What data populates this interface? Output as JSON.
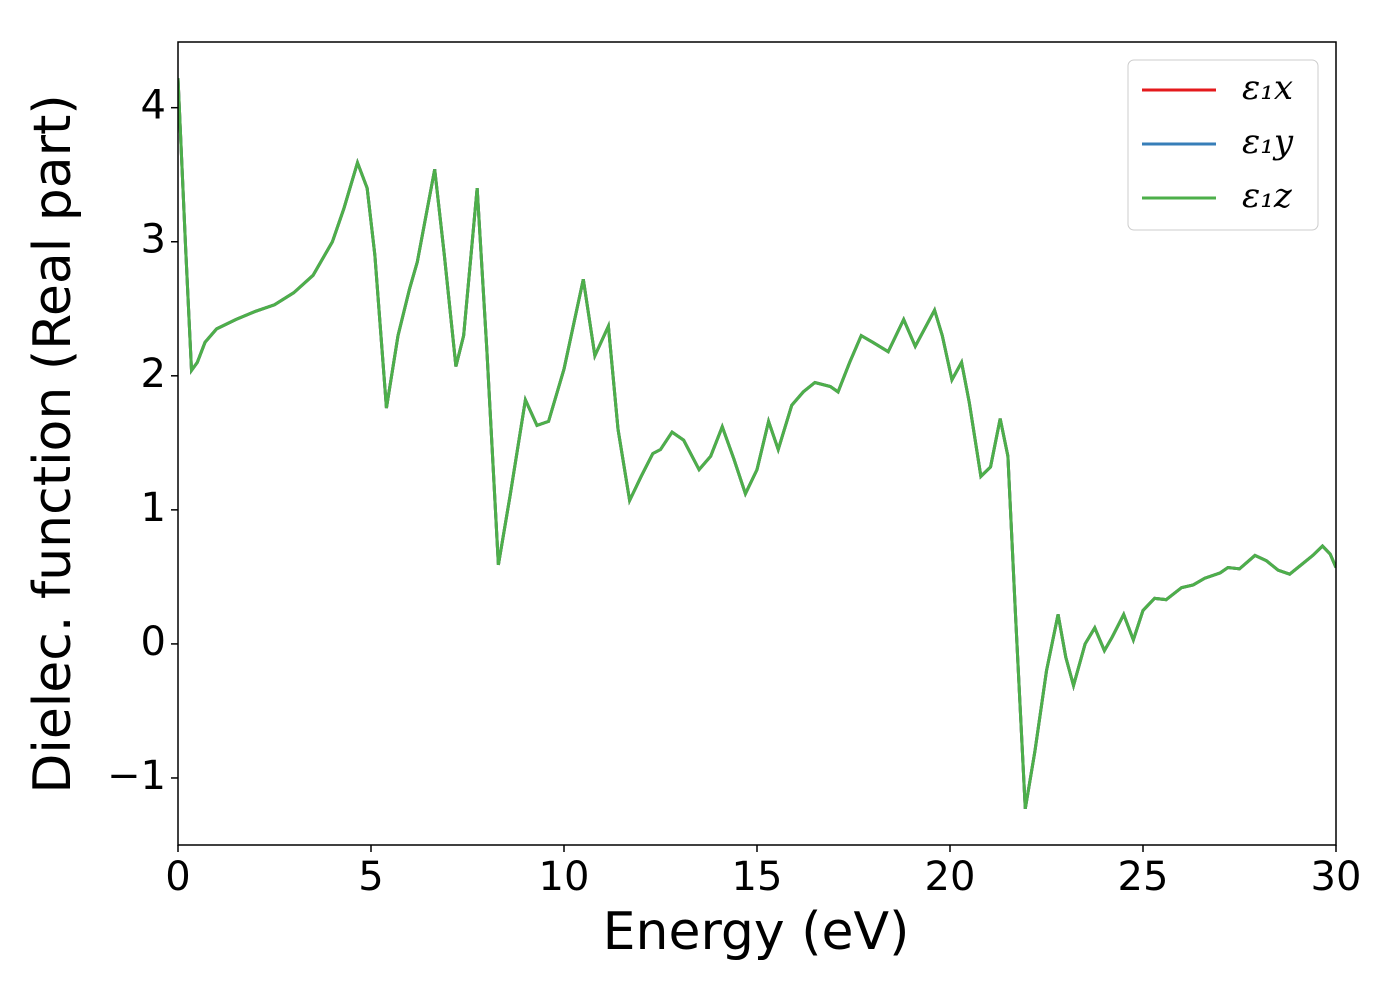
{
  "chart_data": {
    "type": "line",
    "xlabel": "Energy (eV)",
    "ylabel": "Dielec. function (Real part)",
    "x": [
      0,
      0.2,
      0.35,
      0.5,
      0.7,
      1,
      1.5,
      2,
      2.5,
      3,
      3.5,
      4,
      4.3,
      4.65,
      4.9,
      5.1,
      5.4,
      5.7,
      6,
      6.2,
      6.65,
      6.9,
      7.2,
      7.4,
      7.75,
      8.0,
      8.3,
      8.6,
      9.0,
      9.3,
      9.6,
      10.0,
      10.5,
      10.8,
      11.15,
      11.4,
      11.7,
      12.0,
      12.3,
      12.5,
      12.8,
      13.1,
      13.5,
      13.8,
      14.1,
      14.4,
      14.7,
      15.0,
      15.3,
      15.55,
      15.9,
      16.2,
      16.5,
      16.9,
      17.1,
      17.4,
      17.7,
      18.0,
      18.4,
      18.8,
      19.1,
      19.6,
      19.8,
      20.05,
      20.3,
      20.5,
      20.8,
      21.05,
      21.3,
      21.5,
      21.7,
      21.95,
      22.2,
      22.5,
      22.8,
      23.0,
      23.2,
      23.5,
      23.75,
      24.0,
      24.2,
      24.5,
      24.75,
      25.0,
      25.3,
      25.6,
      26.0,
      26.3,
      26.6,
      27.0,
      27.2,
      27.5,
      27.9,
      28.2,
      28.5,
      28.8,
      29.1,
      29.4,
      29.65,
      29.85,
      30
    ],
    "series": [
      {
        "name": "ε₁x",
        "color": "#e41a1c",
        "values": [
          4.22,
          2.94,
          2.04,
          2.1,
          2.25,
          2.35,
          2.42,
          2.48,
          2.53,
          2.62,
          2.75,
          3.0,
          3.25,
          3.59,
          3.4,
          2.9,
          1.76,
          2.3,
          2.65,
          2.85,
          3.54,
          2.9,
          2.07,
          2.3,
          3.4,
          2.2,
          0.59,
          1.1,
          1.82,
          1.63,
          1.66,
          2.05,
          2.72,
          2.15,
          2.37,
          1.6,
          1.07,
          1.25,
          1.42,
          1.45,
          1.58,
          1.52,
          1.3,
          1.4,
          1.62,
          1.38,
          1.12,
          1.3,
          1.66,
          1.45,
          1.78,
          1.88,
          1.95,
          1.92,
          1.88,
          2.1,
          2.3,
          2.25,
          2.18,
          2.42,
          2.22,
          2.49,
          2.3,
          1.97,
          2.1,
          1.8,
          1.25,
          1.32,
          1.68,
          1.4,
          0.2,
          -1.23,
          -0.8,
          -0.2,
          0.22,
          -0.1,
          -0.31,
          0.0,
          0.12,
          -0.05,
          0.05,
          0.22,
          0.03,
          0.25,
          0.34,
          0.33,
          0.42,
          0.44,
          0.49,
          0.53,
          0.57,
          0.56,
          0.66,
          0.62,
          0.55,
          0.52,
          0.59,
          0.66,
          0.73,
          0.67,
          0.57
        ]
      },
      {
        "name": "ε₁y",
        "color": "#377eb8",
        "values": [
          4.22,
          2.94,
          2.04,
          2.1,
          2.25,
          2.35,
          2.42,
          2.48,
          2.53,
          2.62,
          2.75,
          3.0,
          3.25,
          3.59,
          3.4,
          2.9,
          1.76,
          2.3,
          2.65,
          2.85,
          3.54,
          2.9,
          2.07,
          2.3,
          3.4,
          2.2,
          0.59,
          1.1,
          1.82,
          1.63,
          1.66,
          2.05,
          2.72,
          2.15,
          2.37,
          1.6,
          1.07,
          1.25,
          1.42,
          1.45,
          1.58,
          1.52,
          1.3,
          1.4,
          1.62,
          1.38,
          1.12,
          1.3,
          1.66,
          1.45,
          1.78,
          1.88,
          1.95,
          1.92,
          1.88,
          2.1,
          2.3,
          2.25,
          2.18,
          2.42,
          2.22,
          2.49,
          2.3,
          1.97,
          2.1,
          1.8,
          1.25,
          1.32,
          1.68,
          1.4,
          0.2,
          -1.23,
          -0.8,
          -0.2,
          0.22,
          -0.1,
          -0.31,
          0.0,
          0.12,
          -0.05,
          0.05,
          0.22,
          0.03,
          0.25,
          0.34,
          0.33,
          0.42,
          0.44,
          0.49,
          0.53,
          0.57,
          0.56,
          0.66,
          0.62,
          0.55,
          0.52,
          0.59,
          0.66,
          0.73,
          0.67,
          0.57
        ]
      },
      {
        "name": "ε₁z",
        "color": "#4daf4a",
        "values": [
          4.22,
          2.94,
          2.04,
          2.1,
          2.25,
          2.35,
          2.42,
          2.48,
          2.53,
          2.62,
          2.75,
          3.0,
          3.25,
          3.59,
          3.4,
          2.9,
          1.76,
          2.3,
          2.65,
          2.85,
          3.54,
          2.9,
          2.07,
          2.3,
          3.4,
          2.2,
          0.59,
          1.1,
          1.82,
          1.63,
          1.66,
          2.05,
          2.72,
          2.15,
          2.37,
          1.6,
          1.07,
          1.25,
          1.42,
          1.45,
          1.58,
          1.52,
          1.3,
          1.4,
          1.62,
          1.38,
          1.12,
          1.3,
          1.66,
          1.45,
          1.78,
          1.88,
          1.95,
          1.92,
          1.88,
          2.1,
          2.3,
          2.25,
          2.18,
          2.42,
          2.22,
          2.49,
          2.3,
          1.97,
          2.1,
          1.8,
          1.25,
          1.32,
          1.68,
          1.4,
          0.2,
          -1.23,
          -0.8,
          -0.2,
          0.22,
          -0.1,
          -0.31,
          0.0,
          0.12,
          -0.05,
          0.05,
          0.22,
          0.03,
          0.25,
          0.34,
          0.33,
          0.42,
          0.44,
          0.49,
          0.53,
          0.57,
          0.56,
          0.66,
          0.62,
          0.55,
          0.52,
          0.59,
          0.66,
          0.73,
          0.67,
          0.57
        ]
      }
    ],
    "xlim": [
      0,
      30
    ],
    "xticks": [
      0,
      5,
      10,
      15,
      20,
      25,
      30
    ],
    "ylim": [
      -1.5,
      4.49
    ],
    "yticks": [
      {
        "value": -1,
        "label": "−1"
      },
      0,
      1,
      2,
      3,
      4
    ],
    "grid": false,
    "legend": "upper right"
  }
}
